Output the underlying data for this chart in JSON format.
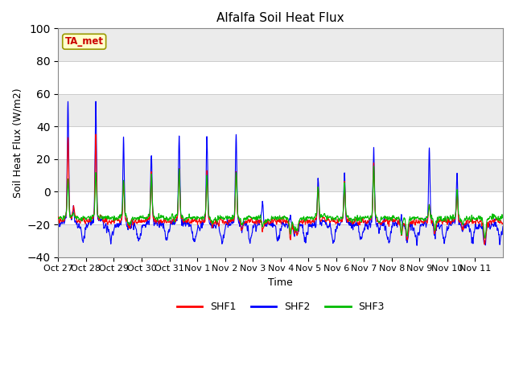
{
  "title": "Alfalfa Soil Heat Flux",
  "ylabel": "Soil Heat Flux (W/m2)",
  "xlabel": "Time",
  "ylim": [
    -40,
    100
  ],
  "background_color": "#ffffff",
  "plot_bg_color": "#ffffff",
  "annotation_text": "TA_met",
  "annotation_bg": "#ffffcc",
  "annotation_edge": "#999900",
  "annotation_text_color": "#cc0000",
  "series_colors": [
    "#ff0000",
    "#0000ff",
    "#00bb00"
  ],
  "series_labels": [
    "SHF1",
    "SHF2",
    "SHF3"
  ],
  "tick_labels": [
    "Oct 27",
    "Oct 28",
    "Oct 29",
    "Oct 30",
    "Oct 31",
    "Nov 1",
    "Nov 2",
    "Nov 3",
    "Nov 4",
    "Nov 5",
    "Nov 6",
    "Nov 7",
    "Nov 8",
    "Nov 9",
    "Nov 10",
    "Nov 11"
  ],
  "n_days": 16,
  "yticks": [
    -40,
    -20,
    0,
    20,
    40,
    60,
    80,
    100
  ],
  "grid_color": "#cccccc",
  "linewidth": 0.8,
  "band_colors": [
    "#f0f0f0",
    "#e0e0e0"
  ],
  "band_ranges": [
    [
      -40,
      -20
    ],
    [
      0,
      20
    ],
    [
      40,
      60
    ],
    [
      80,
      100
    ]
  ]
}
